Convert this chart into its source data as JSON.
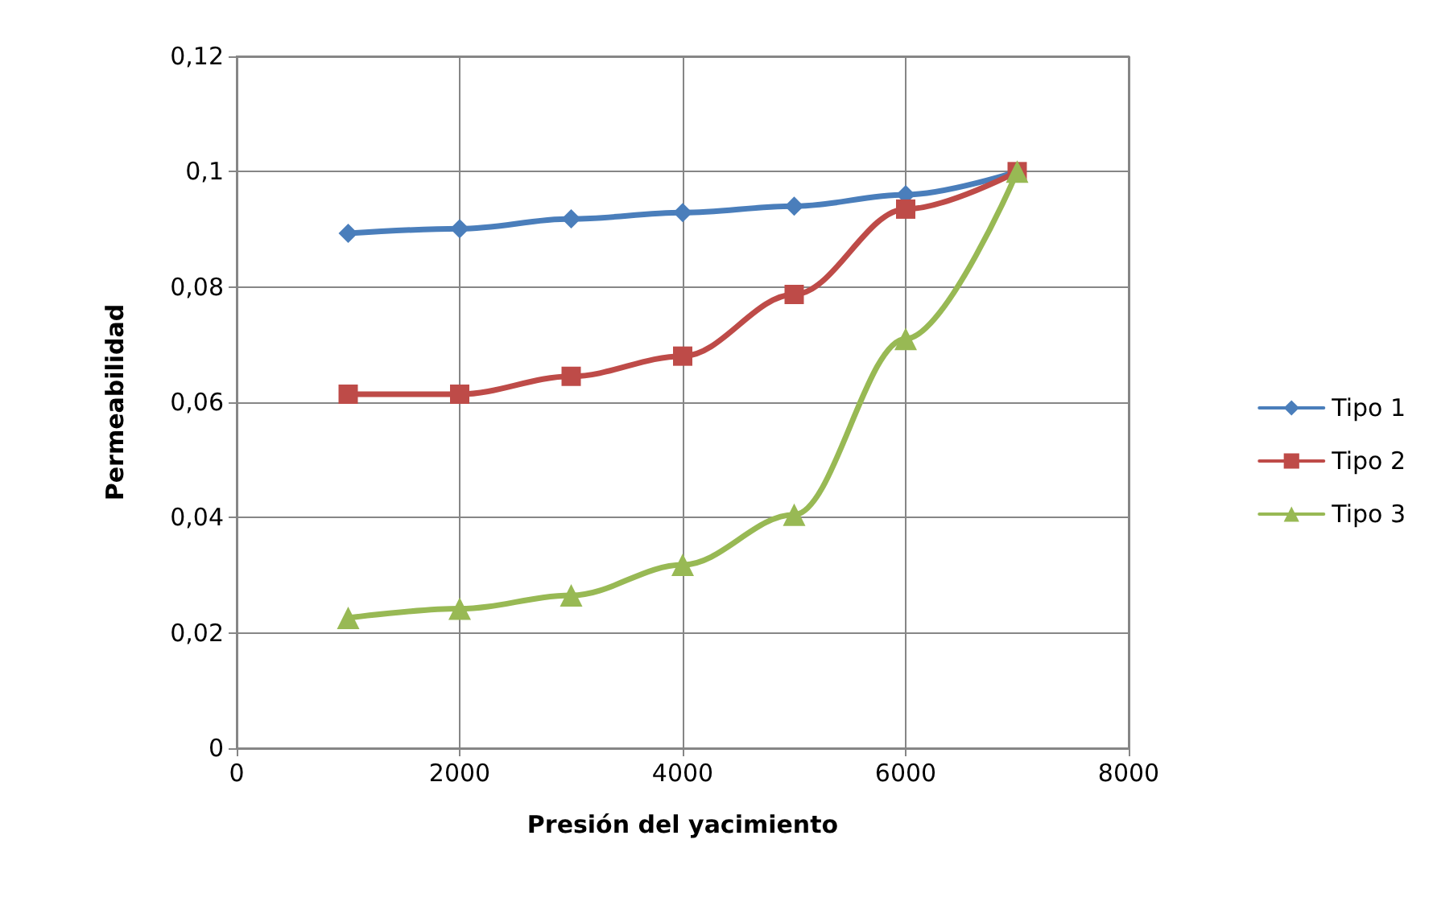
{
  "chart_data": {
    "type": "line",
    "xlabel": "Presión del yacimiento",
    "ylabel": "Permeabilidad",
    "x": [
      1000,
      2000,
      3000,
      4000,
      5000,
      6000,
      7000
    ],
    "series": [
      {
        "name": "Tipo 1",
        "color": "#4a7ebb",
        "marker": "diamond",
        "values": [
          0.0893,
          0.0901,
          0.0918,
          0.0929,
          0.094,
          0.096,
          0.1
        ]
      },
      {
        "name": "Tipo 2",
        "color": "#be4b48",
        "marker": "square",
        "values": [
          0.0614,
          0.0614,
          0.0645,
          0.068,
          0.0787,
          0.0935,
          0.1
        ]
      },
      {
        "name": "Tipo 3",
        "color": "#98b954",
        "marker": "triangle",
        "values": [
          0.0226,
          0.0242,
          0.0265,
          0.0318,
          0.0405,
          0.071,
          0.1
        ]
      }
    ],
    "xlim": [
      0,
      8000
    ],
    "xticks": [
      0,
      2000,
      4000,
      6000,
      8000
    ],
    "ylim": [
      0,
      0.12
    ],
    "yticks": [
      0,
      {
        "value": 0.02,
        "label": "0,02"
      },
      {
        "value": 0.04,
        "label": "0,04"
      },
      {
        "value": 0.06,
        "label": "0,06"
      },
      {
        "value": 0.08,
        "label": "0,08"
      },
      {
        "value": 0.1,
        "label": "0,1"
      },
      {
        "value": 0.12,
        "label": "0,12"
      }
    ],
    "grid": true,
    "legend": "right",
    "line_style": "solid"
  }
}
